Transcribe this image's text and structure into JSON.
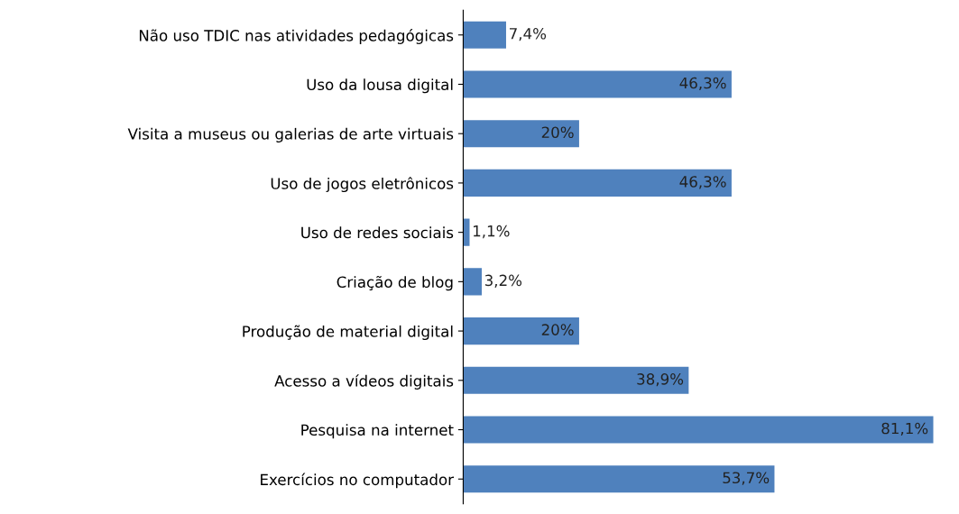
{
  "chart_data": {
    "type": "bar",
    "orientation": "horizontal",
    "categories": [
      "Não uso TDIC nas atividades pedagógicas",
      "Uso da lousa digital",
      "Visita a museus ou galerias de arte virtuais",
      "Uso de jogos eletrônicos",
      "Uso de redes sociais",
      "Criação de blog",
      "Produção de material digital",
      "Acesso a vídeos digitais",
      "Pesquisa na internet",
      "Exercícios no computador"
    ],
    "values": [
      7.4,
      46.3,
      20,
      46.3,
      1.1,
      3.2,
      20,
      38.9,
      81.1,
      53.7
    ],
    "value_labels": [
      "7,4%",
      "46,3%",
      "20%",
      "46,3%",
      "1,1%",
      "3,2%",
      "20%",
      "38,9%",
      "81,1%",
      "53,7%"
    ],
    "color": "#4f81bd",
    "tick_labels": "y",
    "grid": false,
    "legend": false
  }
}
